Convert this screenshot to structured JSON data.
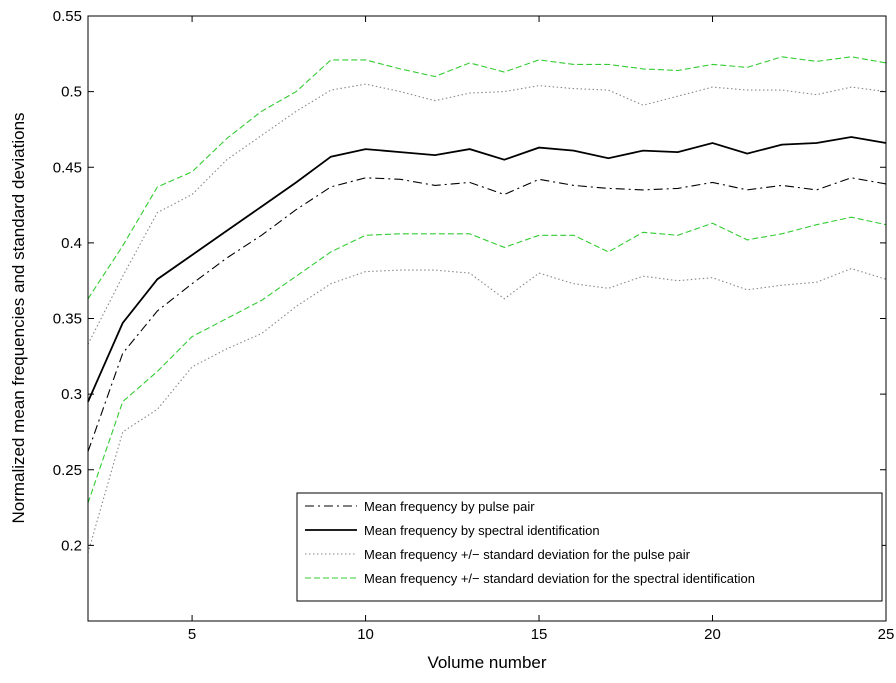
{
  "chart_data": {
    "type": "line",
    "title": "",
    "xlabel": "Volume number",
    "ylabel": "Normalized mean frequencies and standard deviations",
    "xlim": [
      2,
      25
    ],
    "ylim": [
      0.15,
      0.55
    ],
    "xticks": [
      5,
      10,
      15,
      20,
      25
    ],
    "yticks": [
      0.2,
      0.25,
      0.3,
      0.35,
      0.4,
      0.45,
      0.5,
      0.55
    ],
    "grid": false,
    "legend_position": "lower-right",
    "x": [
      2,
      3,
      4,
      5,
      6,
      7,
      8,
      9,
      10,
      11,
      12,
      13,
      14,
      15,
      16,
      17,
      18,
      19,
      20,
      21,
      22,
      23,
      24,
      25
    ],
    "series": [
      {
        "name": "Mean frequency by pulse pair",
        "style": "dashdot",
        "color": "#000000",
        "legend": true,
        "values": [
          0.262,
          0.327,
          0.355,
          0.373,
          0.39,
          0.405,
          0.422,
          0.437,
          0.443,
          0.442,
          0.438,
          0.44,
          0.432,
          0.442,
          0.438,
          0.436,
          0.435,
          0.436,
          0.44,
          0.435,
          0.438,
          0.435,
          0.443,
          0.439
        ]
      },
      {
        "name": "Mean frequency by spectral identification",
        "style": "solid",
        "color": "#000000",
        "legend": true,
        "values": [
          0.295,
          0.347,
          0.376,
          0.392,
          0.408,
          0.424,
          0.44,
          0.457,
          0.462,
          0.46,
          0.458,
          0.462,
          0.455,
          0.463,
          0.461,
          0.456,
          0.461,
          0.46,
          0.466,
          0.459,
          0.465,
          0.466,
          0.47,
          0.466
        ]
      },
      {
        "name": "Mean frequency +/− standard deviation for the pulse pair",
        "style": "dotted",
        "color": "#888888",
        "legend": true,
        "values": [
          0.333,
          0.378,
          0.42,
          0.432,
          0.455,
          0.471,
          0.487,
          0.501,
          0.505,
          0.5,
          0.494,
          0.499,
          0.5,
          0.504,
          0.502,
          0.501,
          0.491,
          0.497,
          0.503,
          0.501,
          0.501,
          0.498,
          0.503,
          0.5
        ]
      },
      {
        "name": "",
        "style": "dotted",
        "color": "#888888",
        "legend": false,
        "values": [
          0.195,
          0.275,
          0.29,
          0.318,
          0.33,
          0.34,
          0.358,
          0.373,
          0.381,
          0.382,
          0.382,
          0.38,
          0.363,
          0.38,
          0.373,
          0.37,
          0.378,
          0.375,
          0.377,
          0.369,
          0.372,
          0.374,
          0.383,
          0.376
        ]
      },
      {
        "name": "Mean frequency +/− standard deviation for the spectral identification",
        "style": "dashed",
        "color": "#33cc33",
        "legend": true,
        "values": [
          0.363,
          0.398,
          0.437,
          0.447,
          0.469,
          0.487,
          0.5,
          0.521,
          0.521,
          0.515,
          0.51,
          0.519,
          0.513,
          0.521,
          0.518,
          0.518,
          0.515,
          0.514,
          0.518,
          0.516,
          0.523,
          0.52,
          0.523,
          0.519
        ]
      },
      {
        "name": "",
        "style": "dashed",
        "color": "#33cc33",
        "legend": false,
        "values": [
          0.228,
          0.295,
          0.315,
          0.338,
          0.35,
          0.362,
          0.378,
          0.394,
          0.405,
          0.406,
          0.406,
          0.406,
          0.397,
          0.405,
          0.405,
          0.394,
          0.407,
          0.405,
          0.413,
          0.402,
          0.406,
          0.412,
          0.417,
          0.412
        ]
      }
    ]
  }
}
